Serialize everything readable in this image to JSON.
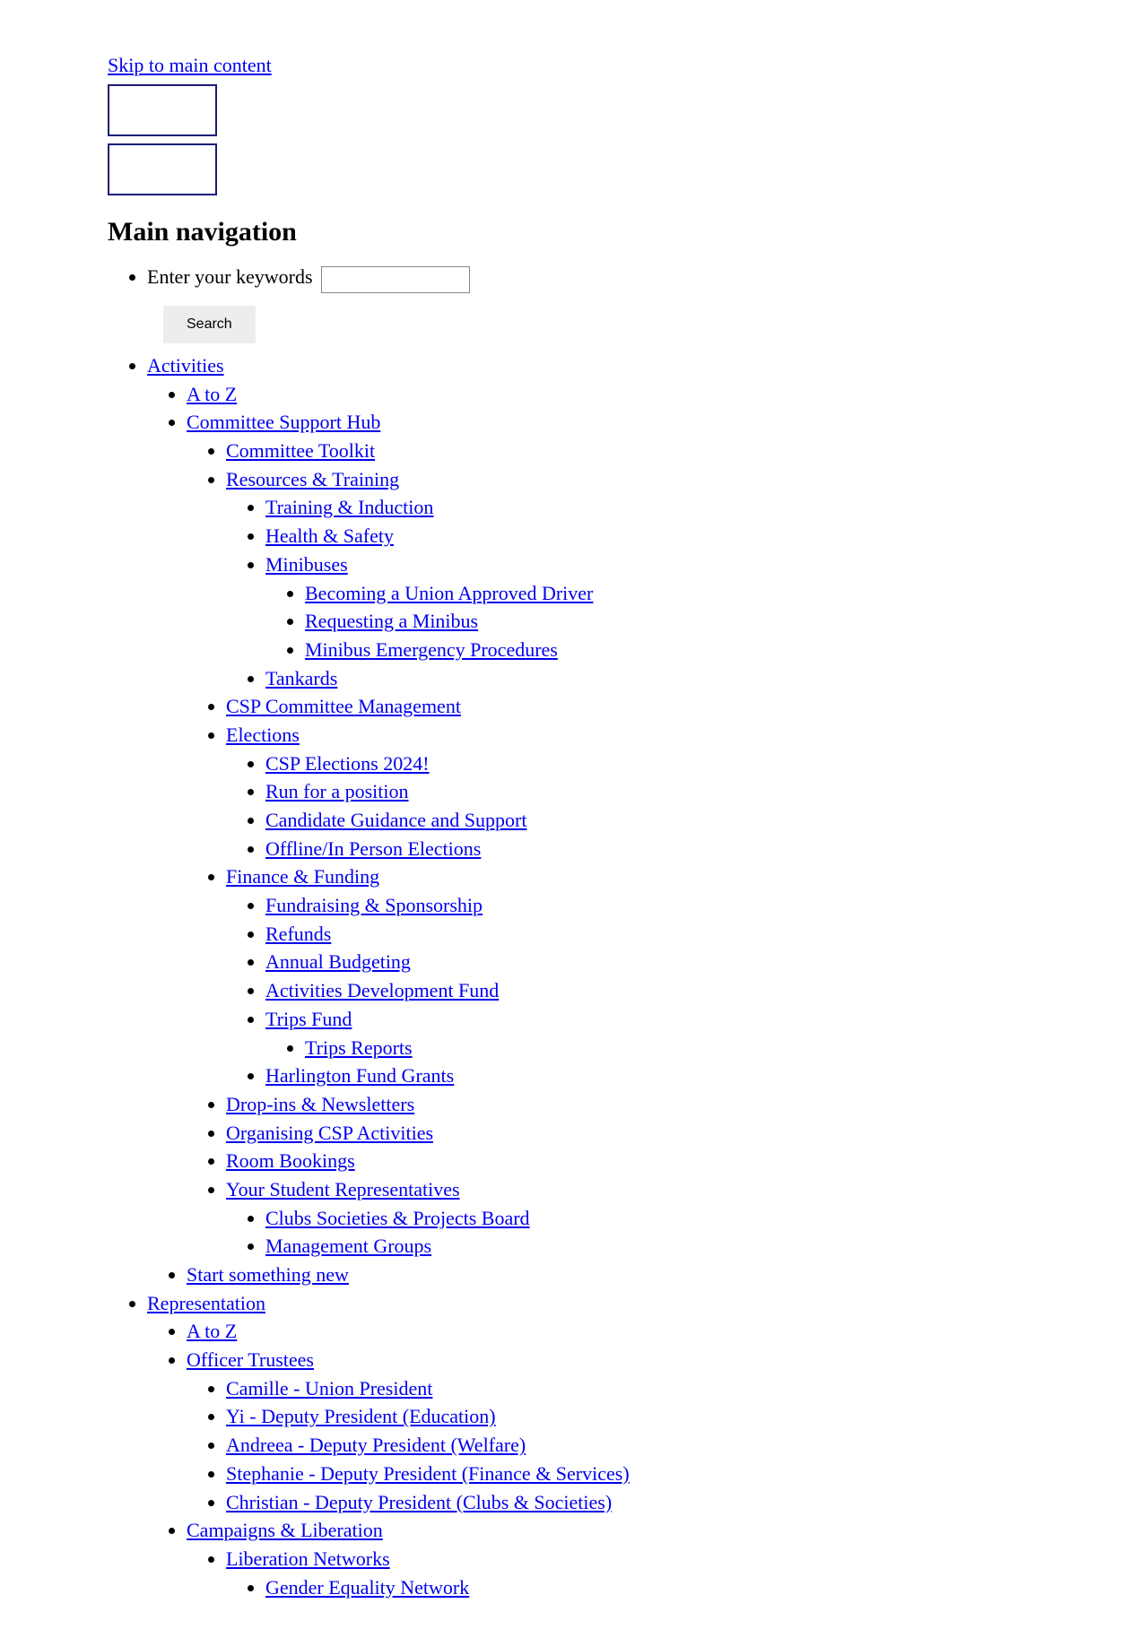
{
  "skip_link": "Skip to main content",
  "nav_heading": "Main navigation",
  "search": {
    "label": "Enter your keywords",
    "button": "Search"
  },
  "nav": {
    "activities": {
      "label": "Activities",
      "a_to_z": "A to Z",
      "csh": {
        "label": "Committee Support Hub",
        "toolkit": "Committee Toolkit",
        "resources": {
          "label": "Resources & Training",
          "training": "Training & Induction",
          "health": "Health & Safety",
          "minibuses": {
            "label": "Minibuses",
            "driver": "Becoming a Union Approved Driver",
            "request": "Requesting a Minibus",
            "emergency": "Minibus Emergency Procedures"
          },
          "tankards": "Tankards"
        },
        "csp_mgmt": "CSP Committee Management",
        "elections": {
          "label": "Elections",
          "e2024": "CSP Elections 2024!",
          "run": "Run for a position",
          "guidance": "Candidate Guidance and Support",
          "offline": "Offline/In Person Elections"
        },
        "finance": {
          "label": "Finance & Funding",
          "fundraising": "Fundraising & Sponsorship",
          "refunds": "Refunds",
          "budgeting": "Annual Budgeting",
          "adf": "Activities Development Fund",
          "trips": {
            "label": "Trips Fund",
            "reports": "Trips Reports"
          },
          "harlington": "Harlington Fund Grants"
        },
        "dropins": "Drop-ins & Newsletters",
        "organising": "Organising CSP Activities",
        "bookings": "Room Bookings",
        "reps": {
          "label": "Your Student Representatives",
          "board": "Clubs Societies & Projects Board",
          "mgmt_groups": "Management Groups"
        }
      },
      "start_new": "Start something new"
    },
    "representation": {
      "label": "Representation",
      "a_to_z": "A to Z",
      "officers": {
        "label": "Officer Trustees",
        "camille": "Camille - Union President",
        "yi": "Yi - Deputy President (Education)",
        "andreea": "Andreea - Deputy President (Welfare)",
        "stephanie": "Stephanie - Deputy President (Finance & Services)",
        "christian": "Christian - Deputy President (Clubs & Societies)"
      },
      "campaigns": {
        "label": "Campaigns & Liberation",
        "liberation": {
          "label": "Liberation Networks",
          "gender": "Gender Equality Network"
        }
      }
    }
  }
}
